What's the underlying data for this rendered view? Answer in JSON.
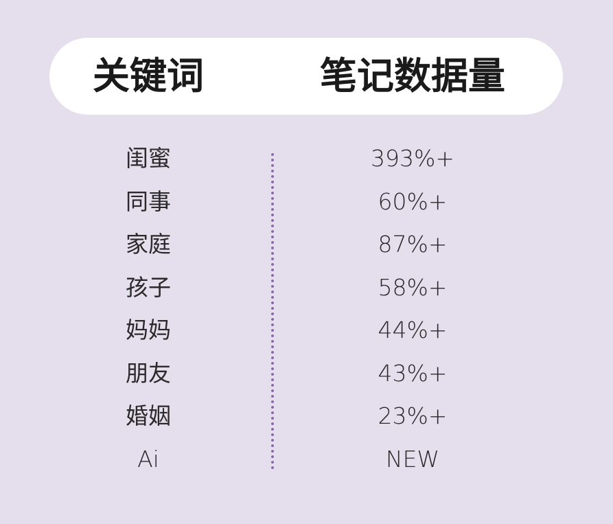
{
  "header": {
    "keyword": "关键词",
    "notes": "笔记数据量"
  },
  "rows": [
    {
      "keyword": "闺蜜",
      "value": "393%+"
    },
    {
      "keyword": "同事",
      "value": "60%+"
    },
    {
      "keyword": "家庭",
      "value": "87%+"
    },
    {
      "keyword": "孩子",
      "value": "58%+"
    },
    {
      "keyword": "妈妈",
      "value": "44%+"
    },
    {
      "keyword": "朋友",
      "value": "43%+"
    },
    {
      "keyword": "婚姻",
      "value": "23%+"
    },
    {
      "keyword": "Ai",
      "value": "NEW"
    }
  ],
  "colors": {
    "background": "#e4deed",
    "divider": "#8a6aaa",
    "header": "#ffffff"
  }
}
